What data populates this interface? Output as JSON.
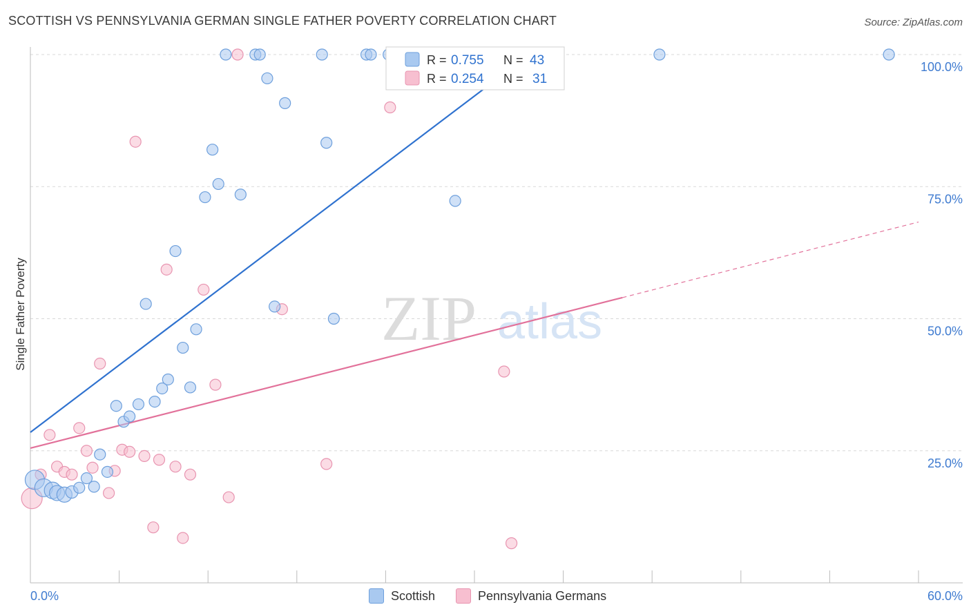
{
  "header": {
    "title": "SCOTTISH VS PENNSYLVANIA GERMAN SINGLE FATHER POVERTY CORRELATION CHART",
    "source": "Source: ZipAtlas.com"
  },
  "watermark": {
    "zip": "ZIP",
    "atlas": "atlas"
  },
  "legend": {
    "rows": [
      {
        "r_label": "R =",
        "r_value": "0.755",
        "n_label": "N =",
        "n_value": "43"
      },
      {
        "r_label": "R =",
        "r_value": "0.254",
        "n_label": "N =",
        "n_value": "31"
      }
    ]
  },
  "bottom_legend": {
    "series1": "Scottish",
    "series2": "Pennsylvania Germans"
  },
  "colors": {
    "scottish_fill": "#a9c9f0",
    "scottish_stroke": "#6d9fdc",
    "scottish_line": "#2f72cf",
    "pg_fill": "#f7bfd0",
    "pg_stroke": "#e894b0",
    "pg_line": "#e2719a",
    "axis_text": "#3f7bd0",
    "grid": "#d8d8d8"
  },
  "chart_data": {
    "type": "scatter",
    "title": "SCOTTISH VS PENNSYLVANIA GERMAN SINGLE FATHER POVERTY CORRELATION CHART",
    "xlabel": "",
    "ylabel": "Single Father Poverty",
    "xlim": [
      0,
      60
    ],
    "ylim": [
      0,
      100
    ],
    "x_tick_labels": [
      "0.0%",
      "60.0%"
    ],
    "y_tick_values": [
      25,
      50,
      75,
      100
    ],
    "y_tick_labels": [
      "25.0%",
      "50.0%",
      "75.0%",
      "100.0%"
    ],
    "grid": true,
    "legend_position": "top-center",
    "series": [
      {
        "name": "Scottish",
        "r": 0.755,
        "n": 43,
        "trend": {
          "x0": 0,
          "y0": 28.5,
          "x1": 33.7,
          "y1": 100
        },
        "points": [
          {
            "x": 0.3,
            "y": 19.5,
            "s": 14
          },
          {
            "x": 0.9,
            "y": 18.0,
            "s": 13
          },
          {
            "x": 1.5,
            "y": 17.5,
            "s": 12
          },
          {
            "x": 1.8,
            "y": 17.0,
            "s": 11
          },
          {
            "x": 2.3,
            "y": 16.7,
            "s": 11
          },
          {
            "x": 2.8,
            "y": 17.2,
            "s": 9
          },
          {
            "x": 3.3,
            "y": 18.0,
            "s": 8
          },
          {
            "x": 3.8,
            "y": 19.8,
            "s": 8
          },
          {
            "x": 4.3,
            "y": 18.2,
            "s": 8
          },
          {
            "x": 4.7,
            "y": 24.3,
            "s": 8
          },
          {
            "x": 5.2,
            "y": 21.0,
            "s": 8
          },
          {
            "x": 5.8,
            "y": 33.5,
            "s": 8
          },
          {
            "x": 6.3,
            "y": 30.5,
            "s": 8
          },
          {
            "x": 6.7,
            "y": 31.5,
            "s": 8
          },
          {
            "x": 7.3,
            "y": 33.8,
            "s": 8
          },
          {
            "x": 7.8,
            "y": 52.8,
            "s": 8
          },
          {
            "x": 8.4,
            "y": 34.3,
            "s": 8
          },
          {
            "x": 8.9,
            "y": 36.8,
            "s": 8
          },
          {
            "x": 9.3,
            "y": 38.5,
            "s": 8
          },
          {
            "x": 9.8,
            "y": 62.8,
            "s": 8
          },
          {
            "x": 10.3,
            "y": 44.5,
            "s": 8
          },
          {
            "x": 10.8,
            "y": 37.0,
            "s": 8
          },
          {
            "x": 11.2,
            "y": 48.0,
            "s": 8
          },
          {
            "x": 11.8,
            "y": 73.0,
            "s": 8
          },
          {
            "x": 12.3,
            "y": 82.0,
            "s": 8
          },
          {
            "x": 12.7,
            "y": 75.5,
            "s": 8
          },
          {
            "x": 13.2,
            "y": 100,
            "s": 8
          },
          {
            "x": 14.2,
            "y": 73.5,
            "s": 8
          },
          {
            "x": 15.2,
            "y": 100,
            "s": 8
          },
          {
            "x": 15.5,
            "y": 100,
            "s": 8
          },
          {
            "x": 16.0,
            "y": 95.5,
            "s": 8
          },
          {
            "x": 16.5,
            "y": 52.3,
            "s": 8
          },
          {
            "x": 17.2,
            "y": 90.8,
            "s": 8
          },
          {
            "x": 19.7,
            "y": 100,
            "s": 8
          },
          {
            "x": 20.0,
            "y": 83.3,
            "s": 8
          },
          {
            "x": 20.5,
            "y": 50.0,
            "s": 8
          },
          {
            "x": 22.7,
            "y": 100,
            "s": 8
          },
          {
            "x": 23.0,
            "y": 100,
            "s": 8
          },
          {
            "x": 24.2,
            "y": 100,
            "s": 8
          },
          {
            "x": 28.7,
            "y": 72.3,
            "s": 8
          },
          {
            "x": 32.7,
            "y": 100,
            "s": 8
          },
          {
            "x": 42.5,
            "y": 100,
            "s": 8
          },
          {
            "x": 58.0,
            "y": 100,
            "s": 8
          }
        ]
      },
      {
        "name": "Pennsylvania Germans",
        "r": 0.254,
        "n": 31,
        "trend": {
          "x0": 0,
          "y0": 25.5,
          "x1": 40,
          "y1": 54.0
        },
        "trend_dashed": {
          "x0": 40,
          "y0": 54.0,
          "x1": 60,
          "y1": 68.3
        },
        "points": [
          {
            "x": 0.1,
            "y": 16.0,
            "s": 15
          },
          {
            "x": 0.7,
            "y": 20.5,
            "s": 8
          },
          {
            "x": 1.3,
            "y": 28.0,
            "s": 8
          },
          {
            "x": 1.8,
            "y": 22.0,
            "s": 8
          },
          {
            "x": 2.3,
            "y": 21.0,
            "s": 8
          },
          {
            "x": 2.8,
            "y": 20.5,
            "s": 8
          },
          {
            "x": 3.3,
            "y": 29.3,
            "s": 8
          },
          {
            "x": 3.8,
            "y": 25.0,
            "s": 8
          },
          {
            "x": 4.2,
            "y": 21.8,
            "s": 8
          },
          {
            "x": 4.7,
            "y": 41.5,
            "s": 8
          },
          {
            "x": 5.3,
            "y": 17.0,
            "s": 8
          },
          {
            "x": 5.7,
            "y": 21.2,
            "s": 8
          },
          {
            "x": 6.2,
            "y": 25.2,
            "s": 8
          },
          {
            "x": 6.7,
            "y": 24.8,
            "s": 8
          },
          {
            "x": 7.1,
            "y": 83.5,
            "s": 8
          },
          {
            "x": 7.7,
            "y": 24.0,
            "s": 8
          },
          {
            "x": 8.3,
            "y": 10.5,
            "s": 8
          },
          {
            "x": 8.7,
            "y": 23.3,
            "s": 8
          },
          {
            "x": 9.2,
            "y": 59.3,
            "s": 8
          },
          {
            "x": 9.8,
            "y": 22.0,
            "s": 8
          },
          {
            "x": 10.3,
            "y": 8.5,
            "s": 8
          },
          {
            "x": 10.8,
            "y": 20.5,
            "s": 8
          },
          {
            "x": 11.7,
            "y": 55.5,
            "s": 8
          },
          {
            "x": 12.5,
            "y": 37.5,
            "s": 8
          },
          {
            "x": 13.4,
            "y": 16.2,
            "s": 8
          },
          {
            "x": 14.0,
            "y": 100,
            "s": 8
          },
          {
            "x": 17.0,
            "y": 51.8,
            "s": 8
          },
          {
            "x": 20.0,
            "y": 22.5,
            "s": 8
          },
          {
            "x": 24.3,
            "y": 90.0,
            "s": 8
          },
          {
            "x": 32.0,
            "y": 40.0,
            "s": 8
          },
          {
            "x": 32.5,
            "y": 7.5,
            "s": 8
          }
        ]
      }
    ]
  }
}
